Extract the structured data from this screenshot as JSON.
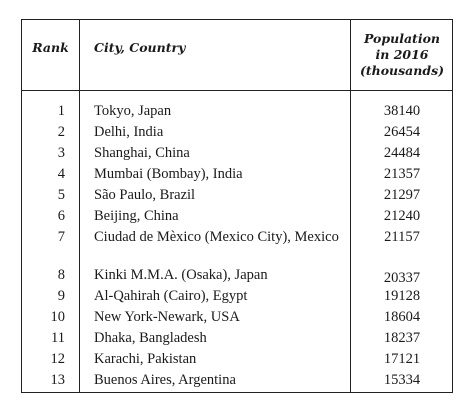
{
  "table": {
    "headers": {
      "rank": "Rank",
      "city": "City, Country",
      "population_line1": "Population",
      "population_line2": "in 2016",
      "population_line3": "(thousands)"
    },
    "rows": [
      {
        "rank": "1",
        "city": "Tokyo, Japan",
        "population": "38140"
      },
      {
        "rank": "2",
        "city": "Delhi, India",
        "population": "26454"
      },
      {
        "rank": "3",
        "city": "Shanghai, China",
        "population": "24484"
      },
      {
        "rank": "4",
        "city": "Mumbai (Bombay), India",
        "population": "21357"
      },
      {
        "rank": "5",
        "city": "São Paulo, Brazil",
        "population": "21297"
      },
      {
        "rank": "6",
        "city": "Beijing, China",
        "population": "21240"
      },
      {
        "rank": "7",
        "city": "Ciudad de Mèxico (Mexico City), Mexico",
        "population": "21157"
      },
      {
        "rank": "8",
        "city": "Kinki M.M.A. (Osaka), Japan",
        "population": "20337"
      },
      {
        "rank": "9",
        "city": "Al-Qahirah (Cairo), Egypt",
        "population": "19128"
      },
      {
        "rank": "10",
        "city": "New York-Newark, USA",
        "population": "18604"
      },
      {
        "rank": "11",
        "city": "Dhaka, Bangladesh",
        "population": "18237"
      },
      {
        "rank": "12",
        "city": "Karachi, Pakistan",
        "population": "17121"
      },
      {
        "rank": "13",
        "city": "Buenos Aires, Argentina",
        "population": "15334"
      }
    ]
  }
}
